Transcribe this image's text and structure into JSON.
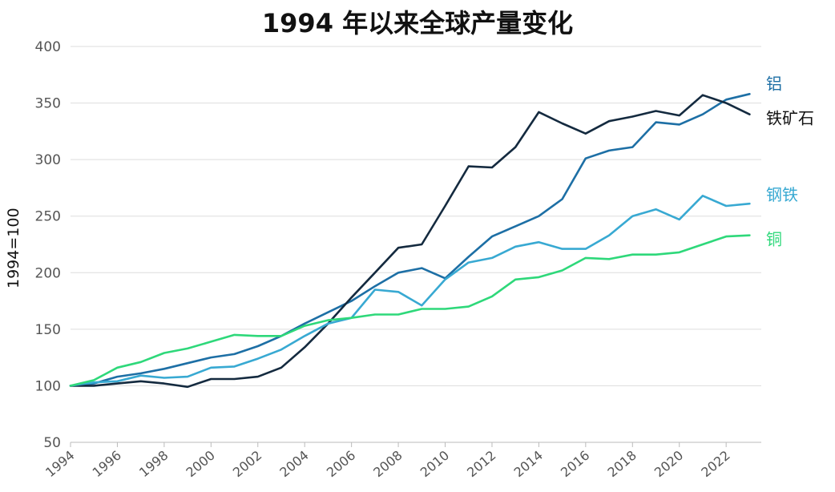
{
  "chart_data": {
    "type": "line",
    "title": "1994 年以来全球产量变化",
    "ylabel": "1994=100",
    "xlabel": "",
    "ylim": [
      50,
      400
    ],
    "yticks": [
      50,
      100,
      150,
      200,
      250,
      300,
      350,
      400
    ],
    "xticks": [
      1994,
      1996,
      1998,
      2000,
      2002,
      2004,
      2006,
      2008,
      2010,
      2012,
      2014,
      2016,
      2018,
      2020,
      2022
    ],
    "grid": true,
    "x": [
      1994,
      1995,
      1996,
      1997,
      1998,
      1999,
      2000,
      2001,
      2002,
      2003,
      2004,
      2005,
      2006,
      2007,
      2008,
      2009,
      2010,
      2011,
      2012,
      2013,
      2014,
      2015,
      2016,
      2017,
      2018,
      2019,
      2020,
      2021,
      2022,
      2023
    ],
    "series": [
      {
        "name": "铝",
        "color": "#1d6fa5",
        "values": [
          100,
          102,
          108,
          111,
          115,
          120,
          125,
          128,
          135,
          144,
          155,
          165,
          175,
          188,
          200,
          204,
          195,
          214,
          232,
          241,
          250,
          265,
          301,
          308,
          311,
          333,
          331,
          340,
          353,
          358
        ]
      },
      {
        "name": "铁矿石",
        "color": "#142a3f",
        "values": [
          100,
          100,
          102,
          104,
          102,
          99,
          106,
          106,
          108,
          116,
          134,
          155,
          178,
          200,
          222,
          225,
          259,
          294,
          293,
          311,
          342,
          332,
          323,
          334,
          338,
          343,
          339,
          357,
          350,
          340
        ]
      },
      {
        "name": "钢铁",
        "color": "#38a9d2",
        "values": [
          100,
          103,
          104,
          109,
          107,
          108,
          116,
          117,
          124,
          132,
          144,
          155,
          160,
          185,
          183,
          171,
          194,
          209,
          213,
          223,
          227,
          221,
          221,
          233,
          250,
          256,
          247,
          268,
          259,
          261
        ]
      },
      {
        "name": "铜",
        "color": "#2ed87a",
        "values": [
          100,
          105,
          116,
          121,
          129,
          133,
          139,
          145,
          144,
          144,
          153,
          158,
          160,
          163,
          163,
          168,
          168,
          170,
          179,
          194,
          196,
          202,
          213,
          212,
          216,
          216,
          218,
          225,
          232,
          233
        ]
      }
    ]
  }
}
